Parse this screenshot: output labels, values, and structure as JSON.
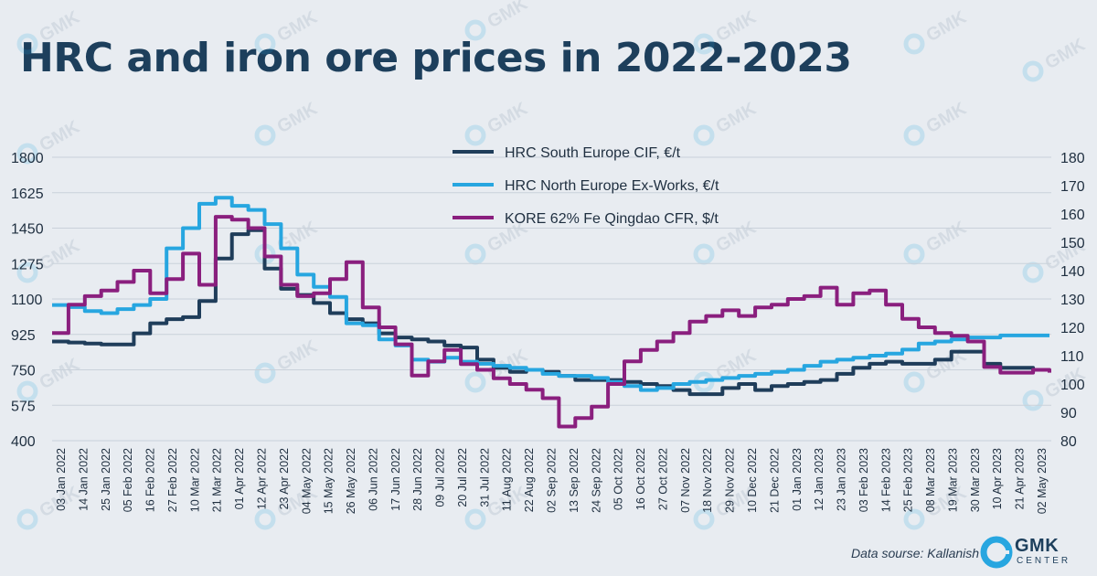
{
  "chart_data": {
    "type": "line",
    "title": "HRC and iron ore prices in 2022-2023",
    "source": "Data sourse: Kallanish",
    "brand": {
      "name": "GMK",
      "sub": "CENTER"
    },
    "y_left": {
      "ticks": [
        400,
        575,
        750,
        925,
        1100,
        1275,
        1450,
        1625,
        1800
      ],
      "range": [
        400,
        1800
      ]
    },
    "y_right": {
      "ticks": [
        80,
        90,
        100,
        110,
        120,
        130,
        140,
        150,
        160,
        170,
        180
      ],
      "range": [
        80,
        180
      ]
    },
    "x_tick_labels": [
      "03 Jan 2022",
      "14 Jan 2022",
      "25 Jan 2022",
      "05 Feb 2022",
      "16 Feb 2022",
      "27 Feb 2022",
      "10 Mar 2022",
      "21 Mar 2022",
      "01 Apr 2022",
      "12 Apr 2022",
      "23 Apr 2022",
      "04 May 2022",
      "15 May 2022",
      "26 May 2022",
      "06 Jun 2022",
      "17 Jun 2022",
      "28 Jun 2022",
      "09 Jul 2022",
      "20 Jul 2022",
      "31 Jul 2022",
      "11 Aug 2022",
      "22 Aug 2022",
      "02 Sep 2022",
      "13 Sep 2022",
      "24 Sep 2022",
      "05 Oct 2022",
      "16 Oct 2022",
      "27 Oct 2022",
      "07 Nov 2022",
      "18 Nov 2022",
      "29 Nov 2022",
      "10 Dec 2022",
      "21 Dec 2022",
      "01 Jan 2023",
      "12 Jan 2023",
      "23 Jan 2023",
      "03 Feb 2023",
      "14 Feb 2023",
      "25 Feb 2023",
      "08 Mar 2023",
      "19 Mar 2023",
      "30 Mar 2023",
      "10 Apr 2023",
      "21 Apr 2023",
      "02 May 2023"
    ],
    "grid": true,
    "legend_position": "top-center",
    "series": [
      {
        "name": "HRC South Europe CIF, €/t",
        "axis": "left",
        "color": "#1f3d5a",
        "values": [
          890,
          885,
          880,
          875,
          875,
          930,
          980,
          1000,
          1010,
          1090,
          1300,
          1420,
          1440,
          1250,
          1150,
          1120,
          1080,
          1030,
          1000,
          980,
          930,
          910,
          900,
          890,
          870,
          860,
          800,
          760,
          740,
          750,
          740,
          720,
          700,
          700,
          700,
          690,
          680,
          670,
          650,
          630,
          630,
          660,
          680,
          650,
          670,
          680,
          690,
          700,
          730,
          760,
          780,
          790,
          780,
          780,
          800,
          840,
          840,
          780,
          760,
          760,
          750,
          750
        ]
      },
      {
        "name": "HRC North Europe Ex-Works, €/t",
        "axis": "left",
        "color": "#27a6e0",
        "values": [
          1070,
          1060,
          1040,
          1030,
          1050,
          1070,
          1100,
          1350,
          1450,
          1570,
          1600,
          1560,
          1540,
          1470,
          1350,
          1220,
          1160,
          1110,
          980,
          970,
          900,
          870,
          800,
          790,
          810,
          790,
          780,
          770,
          760,
          750,
          730,
          720,
          720,
          710,
          690,
          670,
          650,
          660,
          680,
          690,
          700,
          710,
          720,
          730,
          740,
          750,
          770,
          790,
          800,
          810,
          820,
          830,
          850,
          880,
          890,
          900,
          910,
          910,
          920,
          920,
          920,
          920
        ]
      },
      {
        "name": "KORE 62% Fe Qingdao CFR, $/t",
        "axis": "right",
        "color": "#8a1f7e",
        "values": [
          118,
          128,
          131,
          133,
          136,
          140,
          132,
          137,
          146,
          135,
          159,
          158,
          155,
          145,
          135,
          131,
          132,
          137,
          143,
          127,
          120,
          114,
          103,
          108,
          112,
          107,
          105,
          102,
          100,
          98,
          95,
          85,
          88,
          92,
          100,
          108,
          112,
          115,
          118,
          122,
          124,
          126,
          124,
          127,
          128,
          130,
          131,
          134,
          128,
          132,
          133,
          128,
          123,
          120,
          118,
          117,
          115,
          106,
          104,
          104,
          105,
          104
        ]
      }
    ]
  }
}
